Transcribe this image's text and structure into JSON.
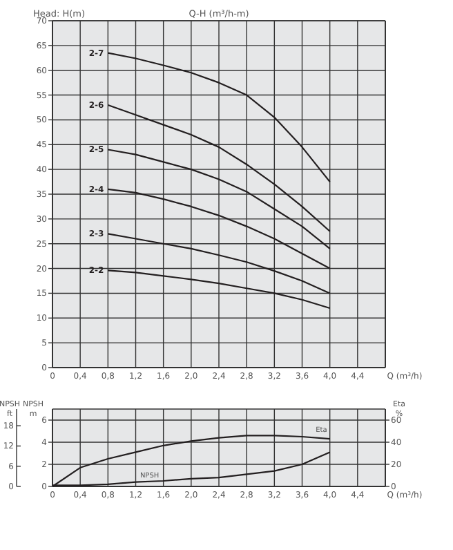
{
  "chart_data": [
    {
      "type": "line",
      "title": "Q-H (m³/h-m)",
      "ylabel": "Head: H(m)",
      "xlabel": "Q (m³/h)",
      "xlim": [
        0,
        4.8
      ],
      "xticks": [
        0,
        {
          "value": 0.4,
          "label": "0,4"
        },
        {
          "value": 0.8,
          "label": "0,8"
        },
        {
          "value": 1.2,
          "label": "1,2"
        },
        {
          "value": 1.6,
          "label": "1,6"
        },
        {
          "value": 2.0,
          "label": "2,0"
        },
        {
          "value": 2.4,
          "label": "2,4"
        },
        {
          "value": 2.8,
          "label": "2,8"
        },
        {
          "value": 3.2,
          "label": "3,2"
        },
        {
          "value": 3.6,
          "label": "3,6"
        },
        {
          "value": 4.0,
          "label": "4,0"
        },
        {
          "value": 4.4,
          "label": "4,4"
        }
      ],
      "ylim": [
        0,
        70
      ],
      "yticks": [
        0,
        5,
        10,
        15,
        20,
        25,
        30,
        35,
        40,
        45,
        50,
        55,
        60,
        65,
        70
      ],
      "grid": true,
      "marker": "none",
      "line_style": "solid",
      "x": [
        0.8,
        1.2,
        1.6,
        2.0,
        2.4,
        2.8,
        3.2,
        3.6,
        4.0
      ],
      "series": [
        {
          "name": "2-7",
          "color": "#231f20",
          "values": [
            63.5,
            62.4,
            61,
            59.5,
            57.5,
            55,
            50.5,
            44.5,
            37.5
          ]
        },
        {
          "name": "2-6",
          "color": "#231f20",
          "values": [
            53,
            51,
            49,
            47,
            44.5,
            41,
            37,
            32.5,
            27.5
          ]
        },
        {
          "name": "2-5",
          "color": "#231f20",
          "values": [
            44,
            43,
            41.5,
            40,
            38,
            35.5,
            32,
            28.5,
            24
          ]
        },
        {
          "name": "2-4",
          "color": "#231f20",
          "values": [
            36,
            35.3,
            34,
            32.5,
            30.7,
            28.5,
            26,
            23,
            20
          ]
        },
        {
          "name": "2-3",
          "color": "#231f20",
          "values": [
            27,
            26,
            25,
            24,
            22.7,
            21.3,
            19.5,
            17.5,
            15
          ]
        },
        {
          "name": "2-2",
          "color": "#231f20",
          "values": [
            19.6,
            19.2,
            18.5,
            17.8,
            17,
            16,
            15,
            13.7,
            12
          ]
        }
      ]
    },
    {
      "type": "line",
      "ylabel": "NPSH m",
      "y2label": "Eta %",
      "y3label": "NPSH ft",
      "xlabel": "Q (m³/h)",
      "xlim": [
        0,
        4.8
      ],
      "xticks": [
        0,
        {
          "value": 0.4,
          "label": "0,4"
        },
        {
          "value": 0.8,
          "label": "0,8"
        },
        {
          "value": 1.2,
          "label": "1,2"
        },
        {
          "value": 1.6,
          "label": "1,6"
        },
        {
          "value": 2.0,
          "label": "2,0"
        },
        {
          "value": 2.4,
          "label": "2,4"
        },
        {
          "value": 2.8,
          "label": "2,8"
        },
        {
          "value": 3.2,
          "label": "3,2"
        },
        {
          "value": 3.6,
          "label": "3,6"
        },
        {
          "value": 4.0,
          "label": "4,0"
        },
        {
          "value": 4.4,
          "label": "4,4"
        }
      ],
      "ylim": [
        0,
        7
      ],
      "yticks": [
        0,
        2,
        4,
        6
      ],
      "y2lim": [
        0,
        70
      ],
      "y2ticks": [
        0,
        20,
        40,
        60
      ],
      "y3lim": [
        0,
        22.97
      ],
      "y3ticks": [
        0,
        6,
        12,
        18
      ],
      "grid": true,
      "marker": "none",
      "line_style": "solid",
      "x": [
        0,
        0.4,
        0.8,
        1.2,
        1.6,
        2.0,
        2.4,
        2.8,
        3.2,
        3.6,
        4.0
      ],
      "series": [
        {
          "name": "Eta",
          "axis": "y2",
          "color": "#231f20",
          "values": [
            0,
            17,
            25,
            31,
            37,
            41,
            44,
            46,
            46,
            45,
            43
          ]
        },
        {
          "name": "NPSH",
          "color": "#231f20",
          "values": [
            0.1,
            0.1,
            0.2,
            0.4,
            0.5,
            0.7,
            0.8,
            1.1,
            1.4,
            2.0,
            3.1
          ]
        }
      ]
    }
  ]
}
